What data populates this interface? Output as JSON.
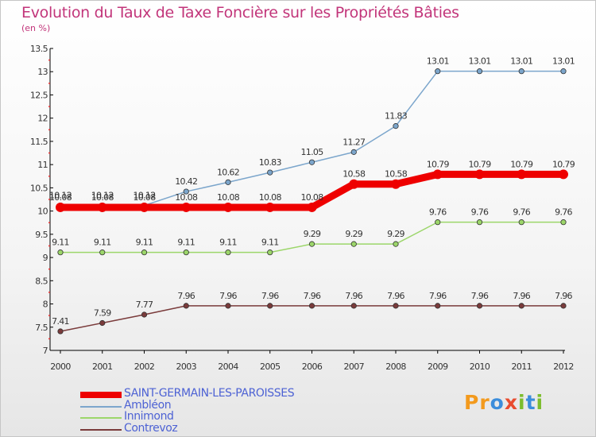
{
  "title": "Evolution du Taux de Taxe Foncière sur les Propriétés Bâties",
  "subtitle": "(en %)",
  "logo": {
    "letters": [
      "P",
      "r",
      "o",
      "x",
      "i",
      "t",
      "i"
    ],
    "colors": [
      "#f39a1d",
      "#f39a1d",
      "#3b8ddb",
      "#e84c2f",
      "#7cbd2d",
      "#3b8ddb",
      "#7cbd2d"
    ]
  },
  "chart_data": {
    "type": "line",
    "title": "Evolution du Taux de Taxe Foncière sur les Propriétés Bâties",
    "ylabel": "(en %)",
    "x": [
      "2000",
      "2001",
      "2002",
      "2003",
      "2004",
      "2005",
      "2006",
      "2007",
      "2008",
      "2009",
      "2010",
      "2011",
      "2012"
    ],
    "ylim": [
      7,
      13.5
    ],
    "yticks": [
      "7",
      "7.5",
      "8",
      "8.5",
      "9",
      "9.5",
      "10",
      "10.5",
      "11",
      "11.5",
      "12",
      "12.5",
      "13",
      "13.5"
    ],
    "grid": false,
    "legend_position": "bottom-left",
    "series": [
      {
        "name": "SAINT-GERMAIN-LES-PAROISSES",
        "color": "#ee0000",
        "emphasis": true,
        "values": [
          10.08,
          10.08,
          10.08,
          10.08,
          10.08,
          10.08,
          10.08,
          10.58,
          10.58,
          10.79,
          10.79,
          10.79,
          10.79
        ]
      },
      {
        "name": "Ambléon",
        "color": "#7ca6cc",
        "values": [
          10.12,
          10.12,
          10.12,
          10.42,
          10.62,
          10.83,
          11.05,
          11.27,
          11.83,
          13.01,
          13.01,
          13.01,
          13.01
        ]
      },
      {
        "name": "Innimond",
        "color": "#9cd66a",
        "values": [
          9.11,
          9.11,
          9.11,
          9.11,
          9.11,
          9.11,
          9.29,
          9.29,
          9.29,
          9.76,
          9.76,
          9.76,
          9.76
        ]
      },
      {
        "name": "Contrevoz",
        "color": "#7a3b3b",
        "values": [
          7.41,
          7.59,
          7.77,
          7.96,
          7.96,
          7.96,
          7.96,
          7.96,
          7.96,
          7.96,
          7.96,
          7.96,
          7.96
        ]
      }
    ]
  }
}
